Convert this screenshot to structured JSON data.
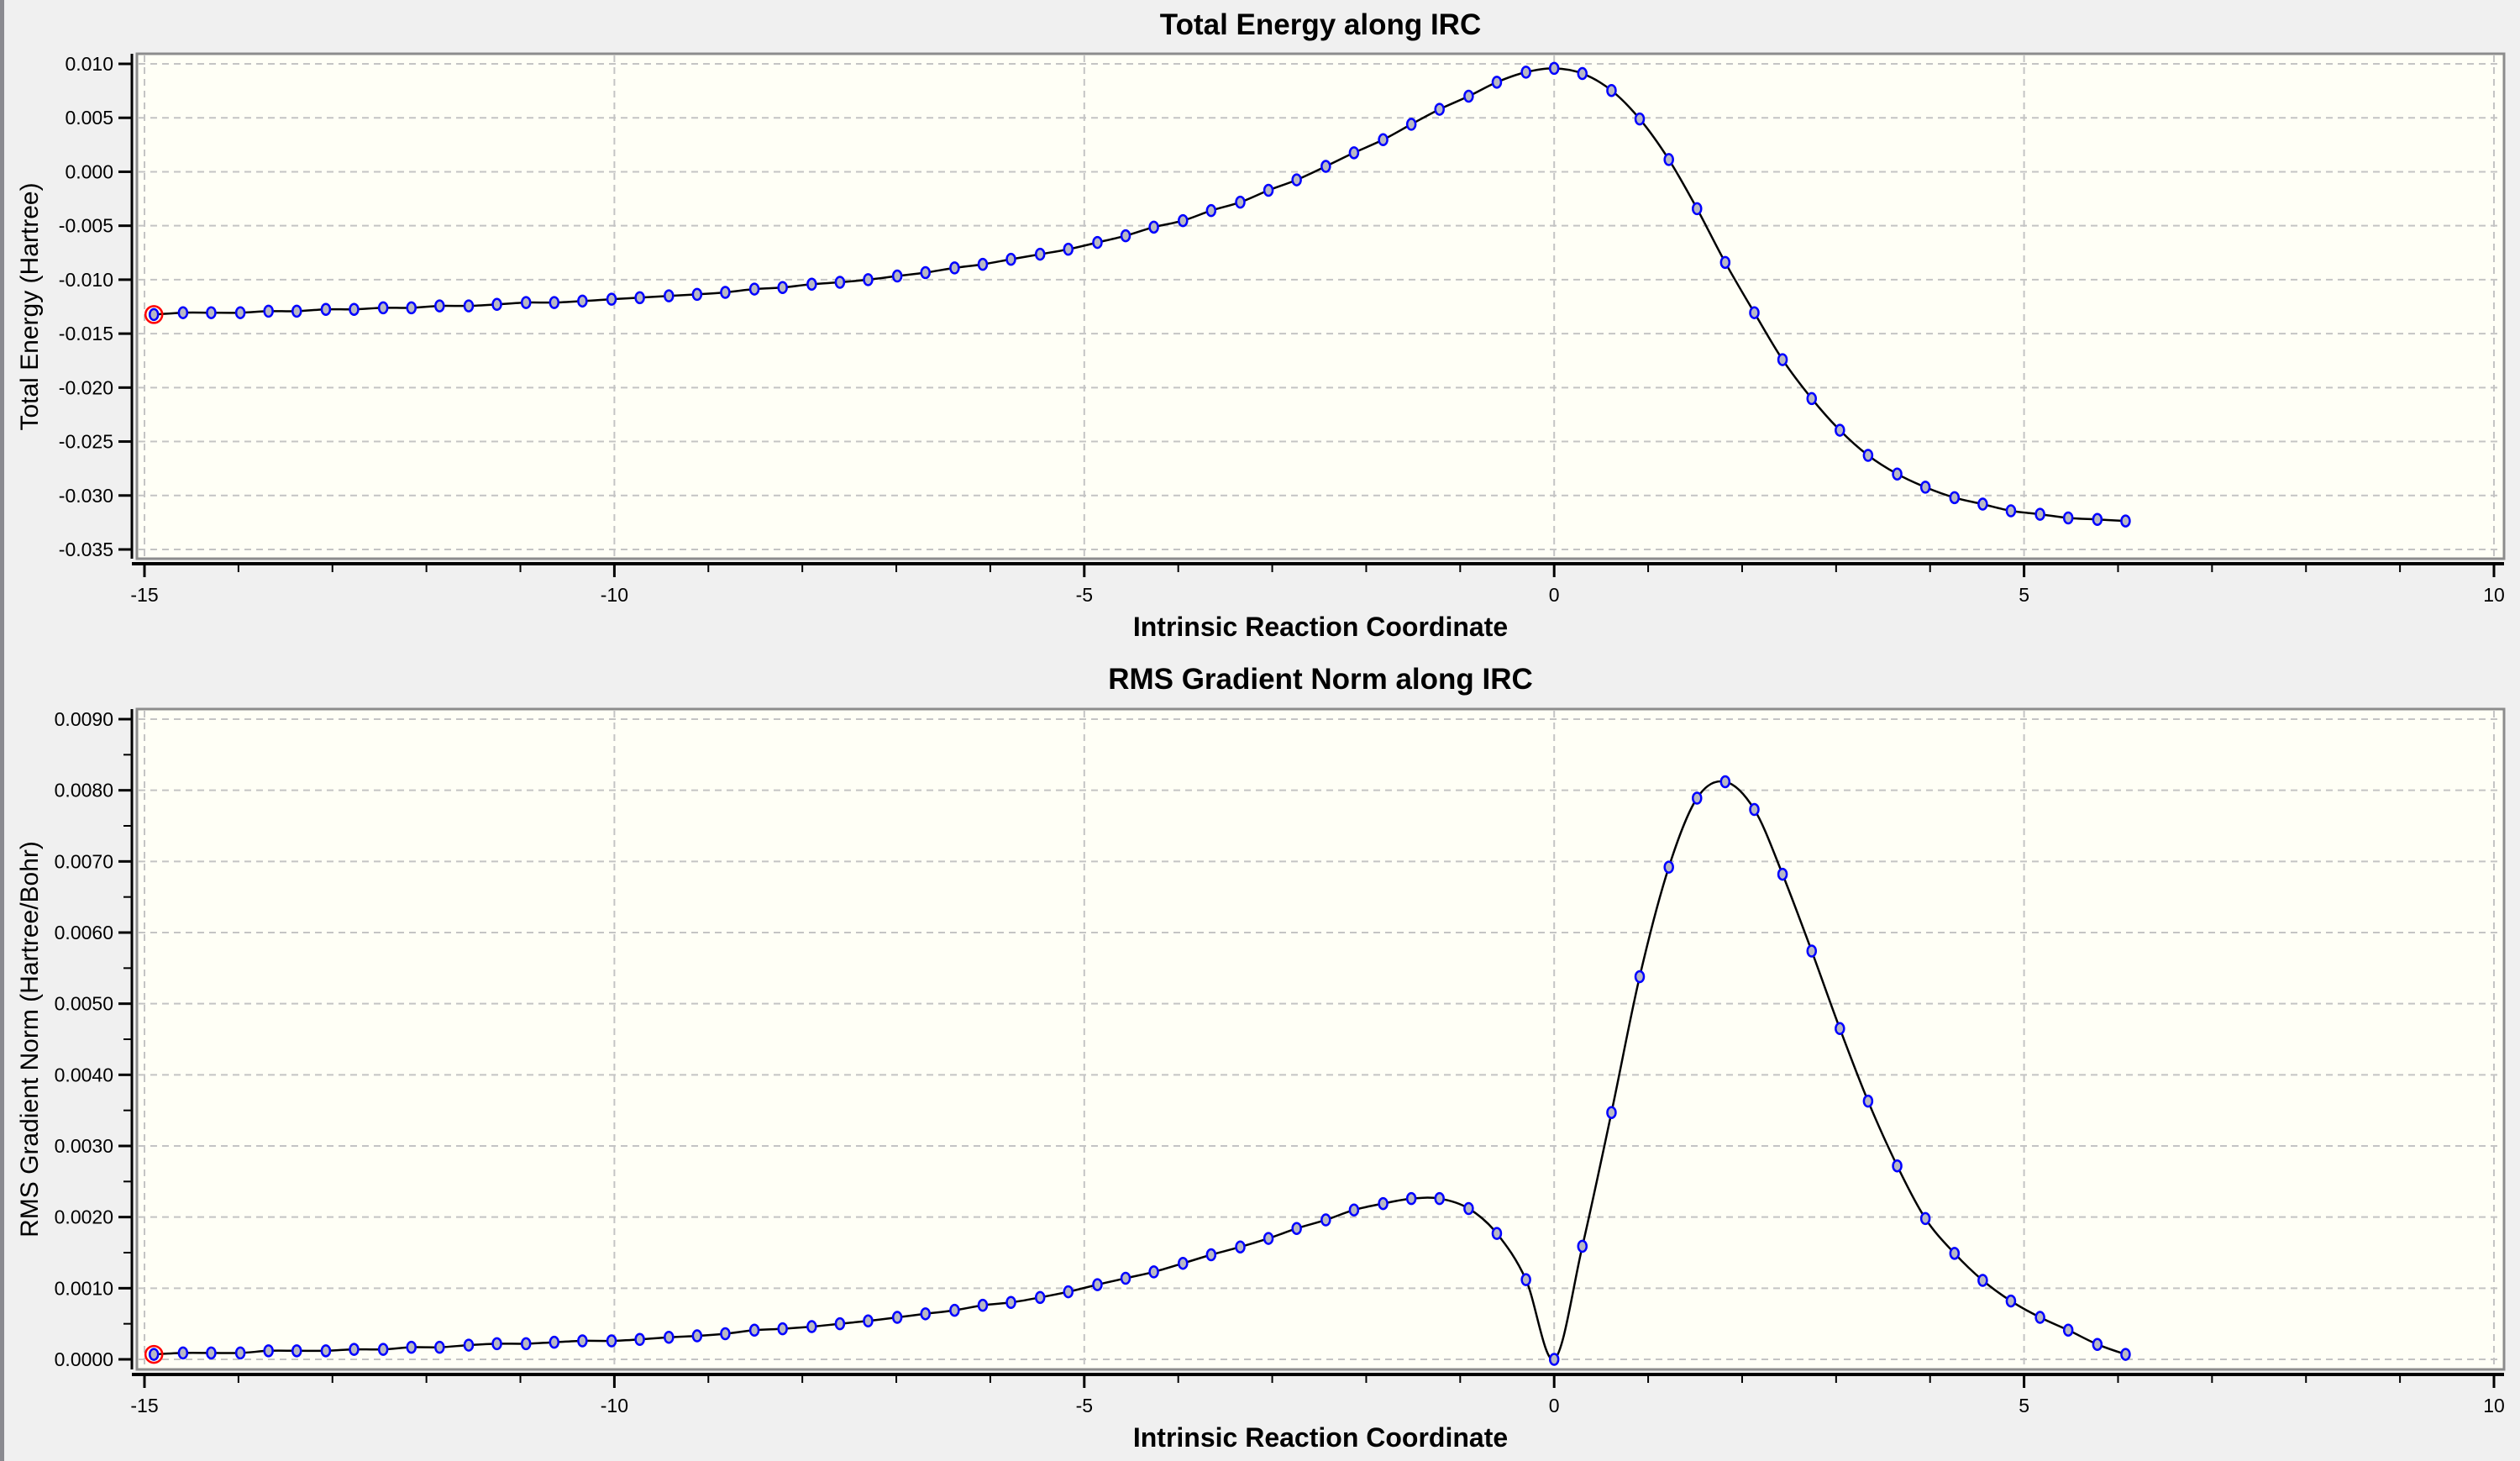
{
  "chart_data": [
    {
      "type": "line",
      "title": "Total Energy along IRC",
      "xlabel": "Intrinsic Reaction Coordinate",
      "ylabel": "Total Energy (Hartree)",
      "xlim": [
        -15,
        10
      ],
      "ylim": [
        -0.035,
        0.01
      ],
      "grid": true,
      "xticks": [
        "-15",
        "-10",
        "-5",
        "0",
        "5",
        "10"
      ],
      "yticks": [
        "0.010",
        "0.005",
        "0.000",
        "-0.005",
        "-0.010",
        "-0.015",
        "-0.020",
        "-0.025",
        "-0.030",
        "-0.035"
      ],
      "line_color": "#000000",
      "marker_color": "#0000ff",
      "marker_fill": "#b8b8c4",
      "highlight_color": "#ff0000",
      "plot_background": "#fffff6",
      "x": [
        -14.9,
        -14.59,
        -14.29,
        -13.98,
        -13.68,
        -13.38,
        -13.07,
        -12.77,
        -12.46,
        -12.16,
        -11.86,
        -11.55,
        -11.25,
        -10.94,
        -10.64,
        -10.34,
        -10.03,
        -9.73,
        -9.42,
        -9.12,
        -8.82,
        -8.51,
        -8.21,
        -7.9,
        -7.6,
        -7.3,
        -6.99,
        -6.69,
        -6.38,
        -6.08,
        -5.78,
        -5.47,
        -5.17,
        -4.86,
        -4.56,
        -4.26,
        -3.95,
        -3.65,
        -3.34,
        -3.04,
        -2.74,
        -2.43,
        -2.13,
        -1.82,
        -1.52,
        -1.22,
        -0.91,
        -0.61,
        -0.3,
        0.0,
        0.3,
        0.61,
        0.91,
        1.22,
        1.52,
        1.82,
        2.13,
        2.43,
        2.74,
        3.04,
        3.34,
        3.65,
        3.95,
        4.26,
        4.56,
        4.86,
        5.17,
        5.47,
        5.78,
        6.08
      ],
      "y": [
        -0.01323,
        -0.01306,
        -0.01306,
        -0.01306,
        -0.01292,
        -0.01292,
        -0.01275,
        -0.01275,
        -0.01261,
        -0.01261,
        -0.01243,
        -0.01243,
        -0.01229,
        -0.01212,
        -0.01212,
        -0.01198,
        -0.01181,
        -0.01167,
        -0.0115,
        -0.01136,
        -0.01118,
        -0.01087,
        -0.01073,
        -0.01042,
        -0.01024,
        -0.01,
        -0.00966,
        -0.00935,
        -0.00891,
        -0.00858,
        -0.00811,
        -0.00764,
        -0.00718,
        -0.00655,
        -0.00593,
        -0.00513,
        -0.00453,
        -0.0036,
        -0.00282,
        -0.00172,
        -0.00075,
        0.0005,
        0.00176,
        0.00297,
        0.0044,
        0.00579,
        0.007,
        0.0083,
        0.00923,
        0.00958,
        0.0091,
        0.00753,
        0.00489,
        0.00113,
        -0.00342,
        -0.0084,
        -0.01306,
        -0.01741,
        -0.02102,
        -0.02395,
        -0.02628,
        -0.02801,
        -0.02923,
        -0.0302,
        -0.0308,
        -0.03142,
        -0.03174,
        -0.03208,
        -0.03222,
        -0.03236
      ]
    },
    {
      "type": "line",
      "title": "RMS Gradient Norm along IRC",
      "xlabel": "Intrinsic Reaction Coordinate",
      "ylabel": "RMS Gradient Norm (Hartree/Bohr)",
      "xlim": [
        -15,
        10
      ],
      "ylim": [
        0.0,
        0.009
      ],
      "grid": true,
      "xticks": [
        "-15",
        "-10",
        "-5",
        "0",
        "5",
        "10"
      ],
      "yticks": [
        "0.0090",
        "0.0080",
        "0.0070",
        "0.0060",
        "0.0050",
        "0.0040",
        "0.0030",
        "0.0020",
        "0.0010",
        "0.0000"
      ],
      "line_color": "#000000",
      "marker_color": "#0000ff",
      "marker_fill": "#b8b8c4",
      "highlight_color": "#ff0000",
      "plot_background": "#fffff6",
      "x": [
        -14.9,
        -14.59,
        -14.29,
        -13.98,
        -13.68,
        -13.38,
        -13.07,
        -12.77,
        -12.46,
        -12.16,
        -11.86,
        -11.55,
        -11.25,
        -10.94,
        -10.64,
        -10.34,
        -10.03,
        -9.73,
        -9.42,
        -9.12,
        -8.82,
        -8.51,
        -8.21,
        -7.9,
        -7.6,
        -7.3,
        -6.99,
        -6.69,
        -6.38,
        -6.08,
        -5.78,
        -5.47,
        -5.17,
        -4.86,
        -4.56,
        -4.26,
        -3.95,
        -3.65,
        -3.34,
        -3.04,
        -2.74,
        -2.43,
        -2.13,
        -1.82,
        -1.52,
        -1.22,
        -0.91,
        -0.61,
        -0.3,
        0.0,
        0.3,
        0.61,
        0.91,
        1.22,
        1.52,
        1.82,
        2.13,
        2.43,
        2.74,
        3.04,
        3.34,
        3.65,
        3.95,
        4.26,
        4.56,
        4.86,
        5.17,
        5.47,
        5.78,
        6.08
      ],
      "y": [
        7e-05,
        9e-05,
        9e-05,
        9e-05,
        0.00012,
        0.00012,
        0.00012,
        0.00014,
        0.00014,
        0.00017,
        0.00017,
        0.0002,
        0.00022,
        0.00022,
        0.00024,
        0.00026,
        0.00026,
        0.00028,
        0.00031,
        0.00033,
        0.00036,
        0.00041,
        0.00043,
        0.00046,
        0.0005,
        0.00054,
        0.00059,
        0.00064,
        0.00069,
        0.00076,
        0.0008,
        0.00087,
        0.00095,
        0.00105,
        0.00114,
        0.00123,
        0.00135,
        0.00147,
        0.00158,
        0.0017,
        0.00184,
        0.00196,
        0.0021,
        0.00219,
        0.00226,
        0.00226,
        0.00212,
        0.00177,
        0.00112,
        0.0,
        0.00159,
        0.00347,
        0.00538,
        0.00692,
        0.00789,
        0.00812,
        0.00773,
        0.00682,
        0.00574,
        0.00465,
        0.00363,
        0.00272,
        0.00198,
        0.00149,
        0.00111,
        0.00082,
        0.00059,
        0.00041,
        0.00021,
        7e-05
      ]
    }
  ]
}
